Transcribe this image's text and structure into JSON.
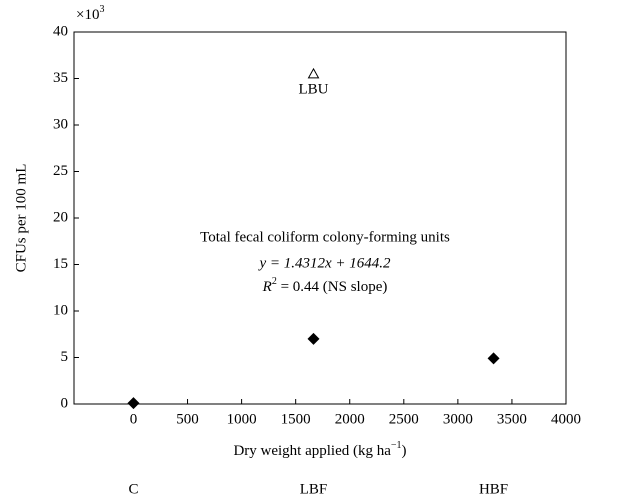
{
  "chart_data": {
    "type": "scatter",
    "y_label": "CFUs per 100 mL",
    "y_multiplier": {
      "base": "×10",
      "exponent": "3"
    },
    "x_label": {
      "text": "Dry weight applied (kg ha",
      "exponent": "−1",
      "end": ")"
    },
    "annotation": {
      "title": "Total fecal coliform colony-forming units",
      "equation": "y = 1.4312x + 1644.2",
      "r2": {
        "base": "R",
        "exponent": "2",
        "text": " = 0.44 (NS slope)"
      }
    },
    "series": [
      {
        "marker": "diamond",
        "color": "#000000",
        "label_position": "below-axis",
        "x": [
          0,
          1665,
          3330
        ],
        "values": [
          0.1,
          7,
          4.9
        ],
        "labels": [
          "C",
          "LBF",
          "HBF"
        ]
      },
      {
        "marker": "triangle",
        "color": "#000000",
        "label_position": "below-marker",
        "x": [
          1665
        ],
        "values": [
          35.5
        ],
        "labels": [
          "LBU"
        ]
      }
    ],
    "xlim": [
      -550,
      4000
    ],
    "xticks": [
      0,
      500,
      1000,
      1500,
      2000,
      2500,
      3000,
      3500,
      4000
    ],
    "ylim": [
      0,
      40
    ],
    "yticks": [
      0,
      5,
      10,
      15,
      20,
      25,
      30,
      35,
      40
    ]
  }
}
